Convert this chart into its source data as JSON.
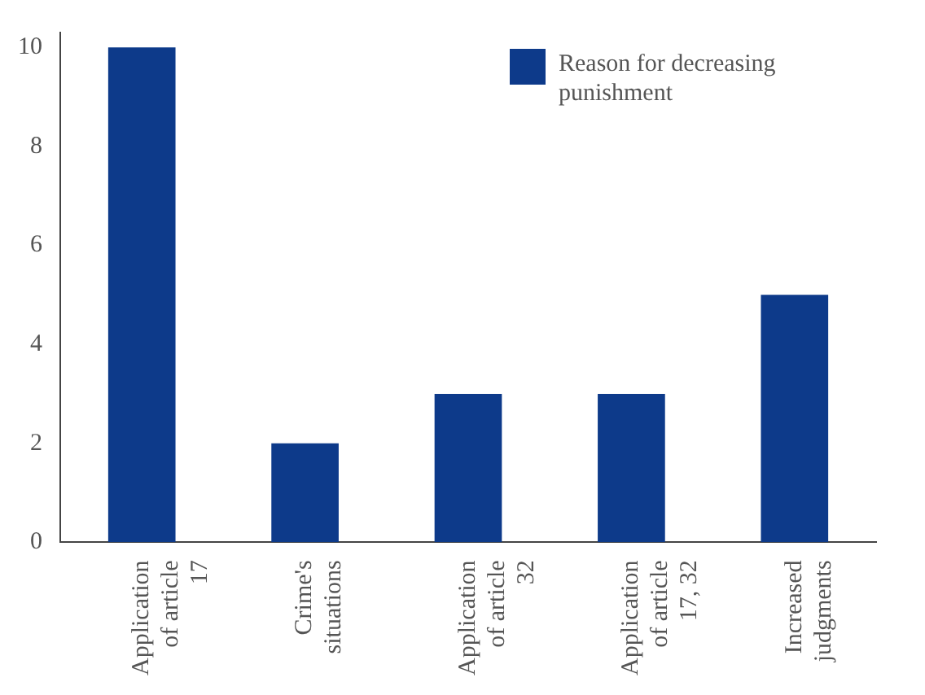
{
  "chart_data": {
    "type": "bar",
    "categories": [
      "Application of article 17",
      "Crime's situations",
      "Application of article 32",
      "Application of article 17, 32",
      "Increased judgments"
    ],
    "series": [
      {
        "name": "Reason for decreasing punishment",
        "color": "#0d3a8a",
        "values": [
          10,
          2,
          3,
          3,
          5
        ]
      }
    ],
    "ylim": [
      0,
      10.3
    ],
    "yticks": [
      0,
      2,
      4,
      6,
      8,
      10
    ],
    "grid": false,
    "legend": "top right"
  }
}
